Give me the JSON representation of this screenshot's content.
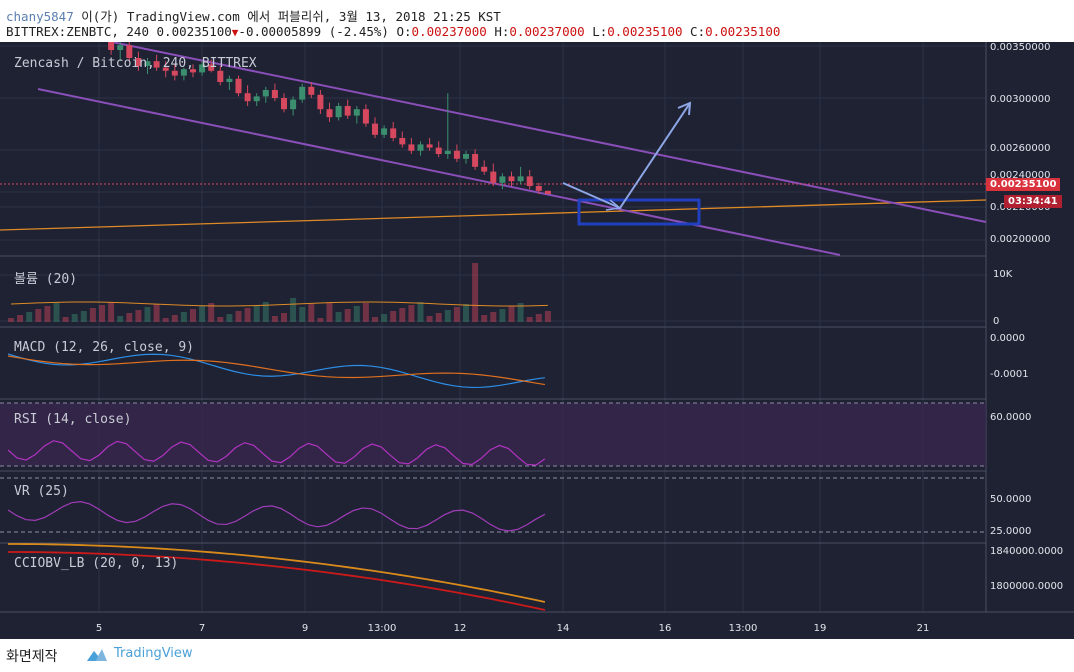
{
  "header": {
    "author": "chany5847",
    "publish_text": " 이(가) TradingView.com 에서 퍼블리쉬, 3월 13, 2018 21:25 KST",
    "symbol": "BITTREX:ZENBTC, 240",
    "last": "0.00235100",
    "change": "-0.00005899 (-2.45%)",
    "o_label": "O:",
    "o_val": "0.00237000",
    "h_label": "H:",
    "h_val": "0.00237000",
    "l_label": "L:",
    "l_val": "0.00235100",
    "c_label": "C:",
    "c_val": "0.00235100"
  },
  "main_pane": {
    "title": "Zencash / Bitcoin, 240, BITTREX",
    "y_ticks": [
      "0.00350000",
      "0.00300000",
      "0.00260000",
      "0.00240000",
      "0.00220000",
      "0.00200000"
    ],
    "price_tag": "0.00235100",
    "countdown": "03:34:41"
  },
  "volume_pane": {
    "title": "볼륨 (20)",
    "y_ticks": [
      "10K",
      "0"
    ]
  },
  "macd_pane": {
    "title": "MACD (12, 26, close, 9)",
    "y_ticks": [
      "0.0000",
      "-0.0001"
    ]
  },
  "rsi_pane": {
    "title": "RSI (14, close)",
    "y_ticks": [
      "60.0000"
    ]
  },
  "vr_pane": {
    "title": "VR (25)",
    "y_ticks": [
      "50.0000",
      "25.0000"
    ]
  },
  "cci_pane": {
    "title": "CCIOBV_LB (20, 0, 13)",
    "y_ticks": [
      "1840000.0000",
      "1800000.0000"
    ]
  },
  "x_axis": [
    "5",
    "7",
    "9",
    "13:00",
    "12",
    "14",
    "16",
    "13:00",
    "19",
    "21"
  ],
  "footer": {
    "made": "화면제작",
    "brand": "TradingView"
  },
  "colors": {
    "background": "#1e2233",
    "up": "#3c8f6e",
    "down": "#d6485e",
    "channel": "#8a4fb8",
    "support": "#e08a25",
    "box": "#2040c0",
    "arrow": "#8ea6e6",
    "macd": "#2d8ee6",
    "signal": "#e0701e",
    "rsi": "#b233c2",
    "vr": "#a03cb8",
    "cci_a": "#cc1a1a",
    "cci_b": "#d98a1a"
  },
  "chart_data": {
    "type": "candlestick",
    "series_name": "ZENBTC",
    "ohlc_approx": [
      [
        0.00352,
        0.00356,
        0.00347,
        0.00349
      ],
      [
        0.00349,
        0.00352,
        0.00344,
        0.00346
      ],
      [
        0.00346,
        0.00351,
        0.00343,
        0.00349
      ],
      [
        0.00349,
        0.00353,
        0.00345,
        0.00347
      ],
      [
        0.00347,
        0.0035,
        0.0034,
        0.00342
      ],
      [
        0.00342,
        0.00346,
        0.00338,
        0.00344
      ],
      [
        0.00344,
        0.00347,
        0.00336,
        0.00338
      ],
      [
        0.00338,
        0.00342,
        0.00333,
        0.0034
      ],
      [
        0.0034,
        0.00352,
        0.00338,
        0.0035
      ],
      [
        0.0035,
        0.00354,
        0.00342,
        0.00344
      ],
      [
        0.00344,
        0.00346,
        0.0033,
        0.00332
      ],
      [
        0.00332,
        0.00336,
        0.00322,
        0.00325
      ],
      [
        0.00325,
        0.0033,
        0.00318,
        0.00328
      ],
      [
        0.00328,
        0.00332,
        0.00318,
        0.0032
      ],
      [
        0.0032,
        0.00324,
        0.00312,
        0.00315
      ],
      [
        0.00315,
        0.0032,
        0.0031,
        0.00318
      ],
      [
        0.00318,
        0.00322,
        0.00312,
        0.00314
      ],
      [
        0.00314,
        0.00318,
        0.00308,
        0.00312
      ],
      [
        0.00312,
        0.00316,
        0.00306,
        0.00309
      ],
      [
        0.00309,
        0.00314,
        0.00306,
        0.00313
      ],
      [
        0.00313,
        0.00316,
        0.00308,
        0.00311
      ],
      [
        0.00311,
        0.00318,
        0.00309,
        0.00316
      ],
      [
        0.00316,
        0.00319,
        0.00311,
        0.00312
      ],
      [
        0.00312,
        0.00315,
        0.00303,
        0.00305
      ],
      [
        0.00305,
        0.00309,
        0.003,
        0.00307
      ],
      [
        0.00307,
        0.00309,
        0.00296,
        0.00298
      ],
      [
        0.00298,
        0.00303,
        0.0029,
        0.00293
      ],
      [
        0.00293,
        0.00298,
        0.0029,
        0.00296
      ],
      [
        0.00296,
        0.00302,
        0.00292,
        0.003
      ],
      [
        0.003,
        0.00304,
        0.00293,
        0.00295
      ],
      [
        0.00295,
        0.00298,
        0.00286,
        0.00288
      ],
      [
        0.00288,
        0.00296,
        0.00284,
        0.00294
      ],
      [
        0.00294,
        0.00304,
        0.00292,
        0.00302
      ],
      [
        0.00302,
        0.00305,
        0.00295,
        0.00297
      ],
      [
        0.00297,
        0.003,
        0.00285,
        0.00288
      ],
      [
        0.00288,
        0.00292,
        0.0028,
        0.00283
      ],
      [
        0.00283,
        0.00292,
        0.00281,
        0.0029
      ],
      [
        0.0029,
        0.00294,
        0.00282,
        0.00284
      ],
      [
        0.00284,
        0.0029,
        0.00279,
        0.00288
      ],
      [
        0.00288,
        0.00291,
        0.00277,
        0.00279
      ],
      [
        0.00279,
        0.00283,
        0.0027,
        0.00272
      ],
      [
        0.00272,
        0.00278,
        0.0027,
        0.00276
      ],
      [
        0.00276,
        0.0028,
        0.00268,
        0.0027
      ],
      [
        0.0027,
        0.00274,
        0.00264,
        0.00266
      ],
      [
        0.00266,
        0.0027,
        0.0026,
        0.00262
      ],
      [
        0.00262,
        0.00268,
        0.00259,
        0.00266
      ],
      [
        0.00266,
        0.0027,
        0.00262,
        0.00264
      ],
      [
        0.00264,
        0.00268,
        0.00258,
        0.0026
      ],
      [
        0.0026,
        0.00298,
        0.00257,
        0.00262
      ],
      [
        0.00262,
        0.00266,
        0.00255,
        0.00257
      ],
      [
        0.00257,
        0.00262,
        0.00254,
        0.0026
      ],
      [
        0.0026,
        0.00263,
        0.0025,
        0.00252
      ],
      [
        0.00252,
        0.00256,
        0.00247,
        0.00249
      ],
      [
        0.00249,
        0.00254,
        0.0024,
        0.00242
      ],
      [
        0.00242,
        0.00248,
        0.00238,
        0.00246
      ],
      [
        0.00246,
        0.00249,
        0.0024,
        0.00243
      ],
      [
        0.00243,
        0.00252,
        0.00241,
        0.00246
      ],
      [
        0.00246,
        0.0025,
        0.00238,
        0.0024
      ],
      [
        0.0024,
        0.00242,
        0.00235,
        0.00237
      ],
      [
        0.00237,
        0.00237,
        0.00235,
        0.00235
      ]
    ]
  }
}
